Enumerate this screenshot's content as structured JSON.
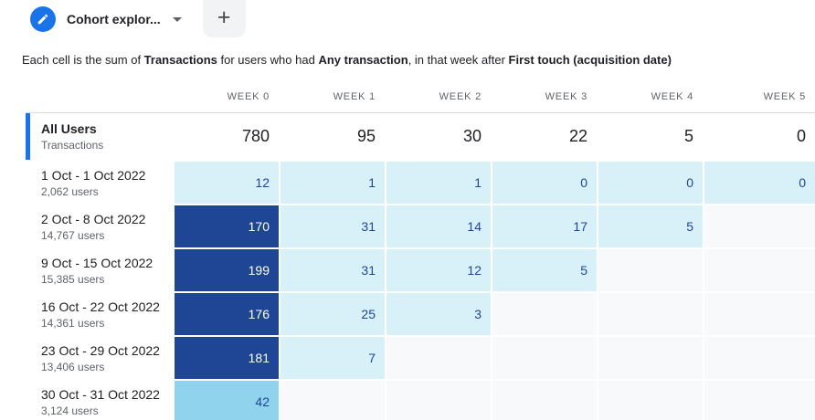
{
  "colors": {
    "accent_blue": "#1a73e8",
    "cell_dark": "#1f4694",
    "cell_medium": "#8fd3ec",
    "cell_light": "#d8f0f8",
    "cell_empty": "#f8f9fa",
    "cell_text": "#1f4694",
    "cell_text_on_dark": "#ffffff",
    "divider": "#dadce0",
    "text_primary": "#202124",
    "text_secondary": "#5f6368",
    "tab_add_bg": "#f1f3f4"
  },
  "tab_bar": {
    "active_tab_label": "Cohort explor...",
    "add_tab_label": "+",
    "icons": [
      "edit-pencil-icon",
      "chevron-down-icon",
      "plus-icon"
    ]
  },
  "description": {
    "segments": [
      {
        "text": "Each cell is the sum of ",
        "bold": false
      },
      {
        "text": "Transactions",
        "bold": true
      },
      {
        "text": " for users who had ",
        "bold": false
      },
      {
        "text": "Any transaction",
        "bold": true
      },
      {
        "text": ", in that week after ",
        "bold": false
      },
      {
        "text": "First touch (acquisition date)",
        "bold": true
      }
    ]
  },
  "table": {
    "column_headers": [
      "WEEK 0",
      "WEEK 1",
      "WEEK 2",
      "WEEK 3",
      "WEEK 4",
      "WEEK 5"
    ],
    "summary_row": {
      "title": "All Users",
      "subtitle": "Transactions",
      "values": [
        "780",
        "95",
        "30",
        "22",
        "5",
        "0"
      ]
    },
    "rows": [
      {
        "label": "1 Oct - 1 Oct 2022",
        "users": "2,062 users",
        "cells": [
          {
            "value": "12",
            "tone": "light"
          },
          {
            "value": "1",
            "tone": "light"
          },
          {
            "value": "1",
            "tone": "light"
          },
          {
            "value": "0",
            "tone": "light"
          },
          {
            "value": "0",
            "tone": "light"
          },
          {
            "value": "0",
            "tone": "light"
          }
        ]
      },
      {
        "label": "2 Oct - 8 Oct 2022",
        "users": "14,767 users",
        "cells": [
          {
            "value": "170",
            "tone": "dark"
          },
          {
            "value": "31",
            "tone": "light"
          },
          {
            "value": "14",
            "tone": "light"
          },
          {
            "value": "17",
            "tone": "light"
          },
          {
            "value": "5",
            "tone": "light"
          },
          {
            "value": "",
            "tone": "empty"
          }
        ]
      },
      {
        "label": "9 Oct - 15 Oct 2022",
        "users": "15,385 users",
        "cells": [
          {
            "value": "199",
            "tone": "dark"
          },
          {
            "value": "31",
            "tone": "light"
          },
          {
            "value": "12",
            "tone": "light"
          },
          {
            "value": "5",
            "tone": "light"
          },
          {
            "value": "",
            "tone": "empty"
          },
          {
            "value": "",
            "tone": "empty"
          }
        ]
      },
      {
        "label": "16 Oct - 22 Oct 2022",
        "users": "14,361 users",
        "cells": [
          {
            "value": "176",
            "tone": "dark"
          },
          {
            "value": "25",
            "tone": "light"
          },
          {
            "value": "3",
            "tone": "light"
          },
          {
            "value": "",
            "tone": "empty"
          },
          {
            "value": "",
            "tone": "empty"
          },
          {
            "value": "",
            "tone": "empty"
          }
        ]
      },
      {
        "label": "23 Oct - 29 Oct 2022",
        "users": "13,406 users",
        "cells": [
          {
            "value": "181",
            "tone": "dark"
          },
          {
            "value": "7",
            "tone": "light"
          },
          {
            "value": "",
            "tone": "empty"
          },
          {
            "value": "",
            "tone": "empty"
          },
          {
            "value": "",
            "tone": "empty"
          },
          {
            "value": "",
            "tone": "empty"
          }
        ]
      },
      {
        "label": "30 Oct - 31 Oct 2022",
        "users": "3,124 users",
        "cells": [
          {
            "value": "42",
            "tone": "medium"
          },
          {
            "value": "",
            "tone": "empty"
          },
          {
            "value": "",
            "tone": "empty"
          },
          {
            "value": "",
            "tone": "empty"
          },
          {
            "value": "",
            "tone": "empty"
          },
          {
            "value": "",
            "tone": "empty"
          }
        ]
      }
    ]
  }
}
